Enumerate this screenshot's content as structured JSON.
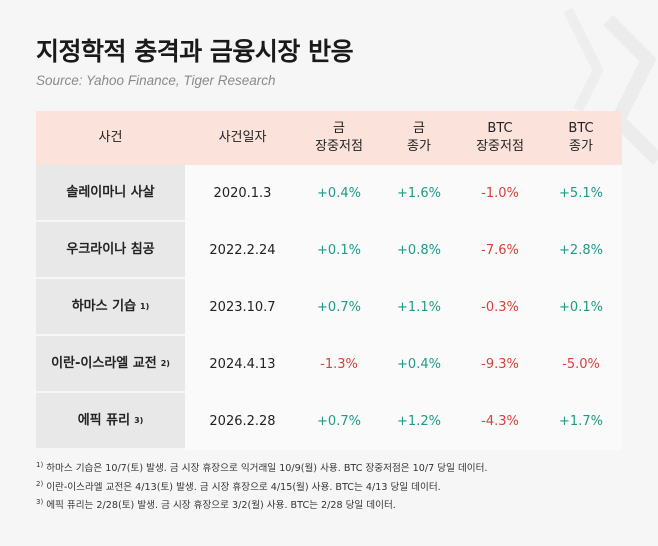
{
  "header": {
    "title": "지정학적 충격과 금융시장 반응",
    "source": "Source: Yahoo Finance, Tiger Research"
  },
  "table": {
    "columns": [
      [
        "사건"
      ],
      [
        "사건일자"
      ],
      [
        "금",
        "장중저점"
      ],
      [
        "금",
        "종가"
      ],
      [
        "BTC",
        "장중저점"
      ],
      [
        "BTC",
        "종가"
      ]
    ],
    "rows": [
      {
        "event": "솔레이마니 사살",
        "date": "2020.1.3",
        "values": [
          "+0.4%",
          "+1.6%",
          "-1.0%",
          "+5.1%"
        ]
      },
      {
        "event": "우크라이나 침공",
        "date": "2022.2.24",
        "values": [
          "+0.1%",
          "+0.8%",
          "-7.6%",
          "+2.8%"
        ]
      },
      {
        "event": "하마스 기습",
        "note": "1)",
        "date": "2023.10.7",
        "values": [
          "+0.7%",
          "+1.1%",
          "-0.3%",
          "+0.1%"
        ]
      },
      {
        "event": "이란-이스라엘 교전",
        "note": "2)",
        "date": "2024.4.13",
        "values": [
          "-1.3%",
          "+0.4%",
          "-9.3%",
          "-5.0%"
        ]
      },
      {
        "event": "에픽 퓨리",
        "note": "3)",
        "date": "2026.2.28",
        "values": [
          "+0.7%",
          "+1.2%",
          "-4.3%",
          "+1.7%"
        ]
      }
    ]
  },
  "footnotes": [
    {
      "marker": "1)",
      "text": "하마스 기습은 10/7(토) 발생. 금 시장 휴장으로 익거래일 10/9(월) 사용. BTC 장중저점은 10/7 당일 데이터."
    },
    {
      "marker": "2)",
      "text": "이란-이스라엘 교전은 4/13(토) 발생. 금 시장 휴장으로 4/15(월) 사용. BTC는 4/13 당일 데이터."
    },
    {
      "marker": "3)",
      "text": "에픽 퓨리는 2/28(토) 발생. 금 시장 휴장으로 3/2(월) 사용. BTC는 2/28 당일 데이터."
    }
  ]
}
